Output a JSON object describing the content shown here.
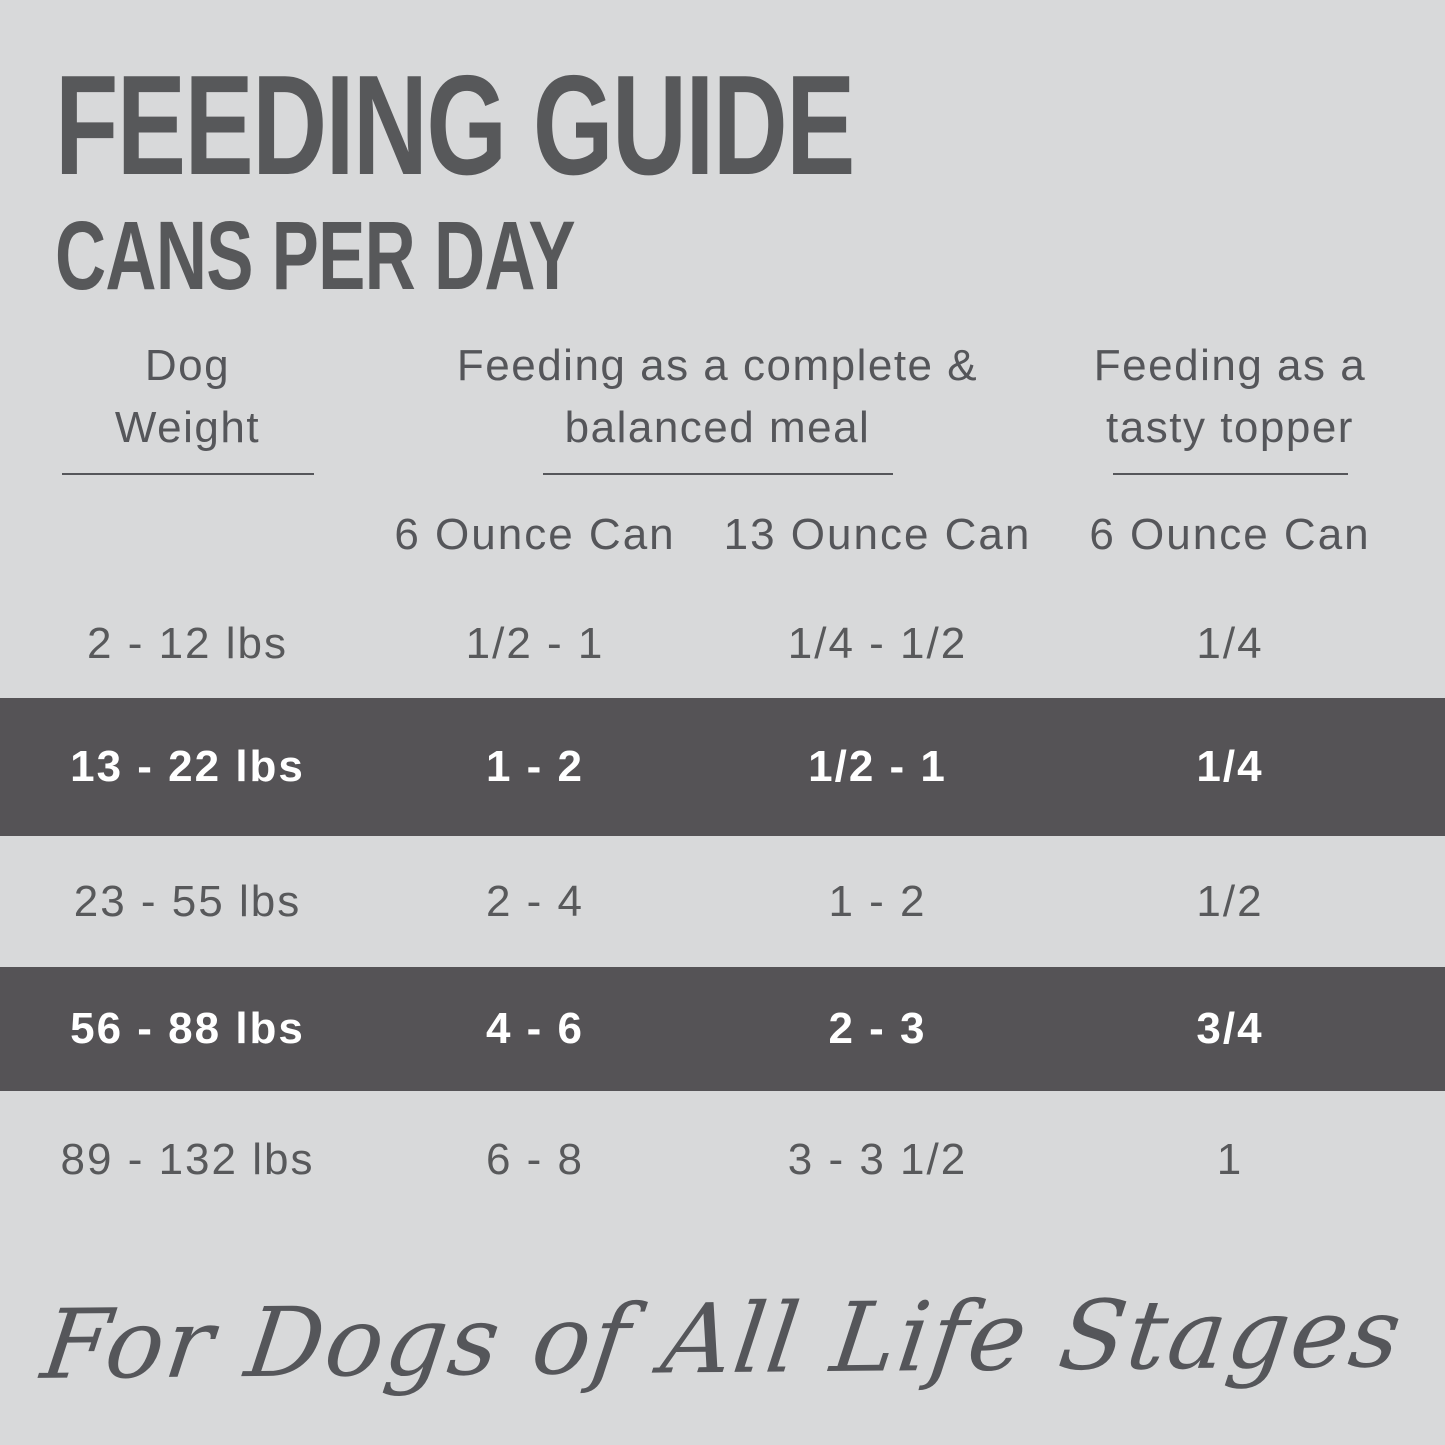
{
  "header": {
    "title": "FEEDING GUIDE",
    "subtitle": "CANS PER DAY"
  },
  "display": {
    "weight_header_line1": "Dog",
    "weight_header_line2": "Weight",
    "meal_header_line1": "Feeding as a complete &",
    "meal_header_line2": "balanced meal",
    "topper_header_line1": "Feeding as a",
    "topper_header_line2": "tasty topper",
    "sub_meal_6oz": "6 Ounce Can",
    "sub_meal_13oz": "13 Ounce Can",
    "sub_topper_6oz": "6 Ounce Can"
  },
  "chart_data": {
    "type": "table",
    "title": "FEEDING GUIDE",
    "subtitle": "CANS PER DAY",
    "column_groups": [
      {
        "label": "Dog Weight",
        "columns": [
          "Dog Weight"
        ]
      },
      {
        "label": "Feeding as a complete & balanced meal",
        "columns": [
          "6 Ounce Can",
          "13 Ounce Can"
        ]
      },
      {
        "label": "Feeding as a tasty topper",
        "columns": [
          "6 Ounce Can"
        ]
      }
    ],
    "rows": [
      [
        "2 - 12 lbs",
        "1/2 - 1",
        "1/4 - 1/2",
        "1/4"
      ],
      [
        "13 - 22 lbs",
        "1 - 2",
        "1/2 - 1",
        "1/4"
      ],
      [
        "23 - 55 lbs",
        "2 - 4",
        "1 - 2",
        "1/2"
      ],
      [
        "56 - 88 lbs",
        "4 - 6",
        "2 - 3",
        "3/4"
      ],
      [
        "89 - 132 lbs",
        "6 - 8",
        "3 - 3 1/2",
        "1"
      ]
    ],
    "highlighted_rows": [
      1,
      3
    ],
    "footnote": "For Dogs of All Life Stages"
  },
  "footer": {
    "tagline": "For Dogs of All Life Stages"
  },
  "colors": {
    "background": "#d8d9da",
    "text": "#58595b",
    "highlight_row_background": "#555356",
    "highlight_row_text": "#ffffff"
  }
}
